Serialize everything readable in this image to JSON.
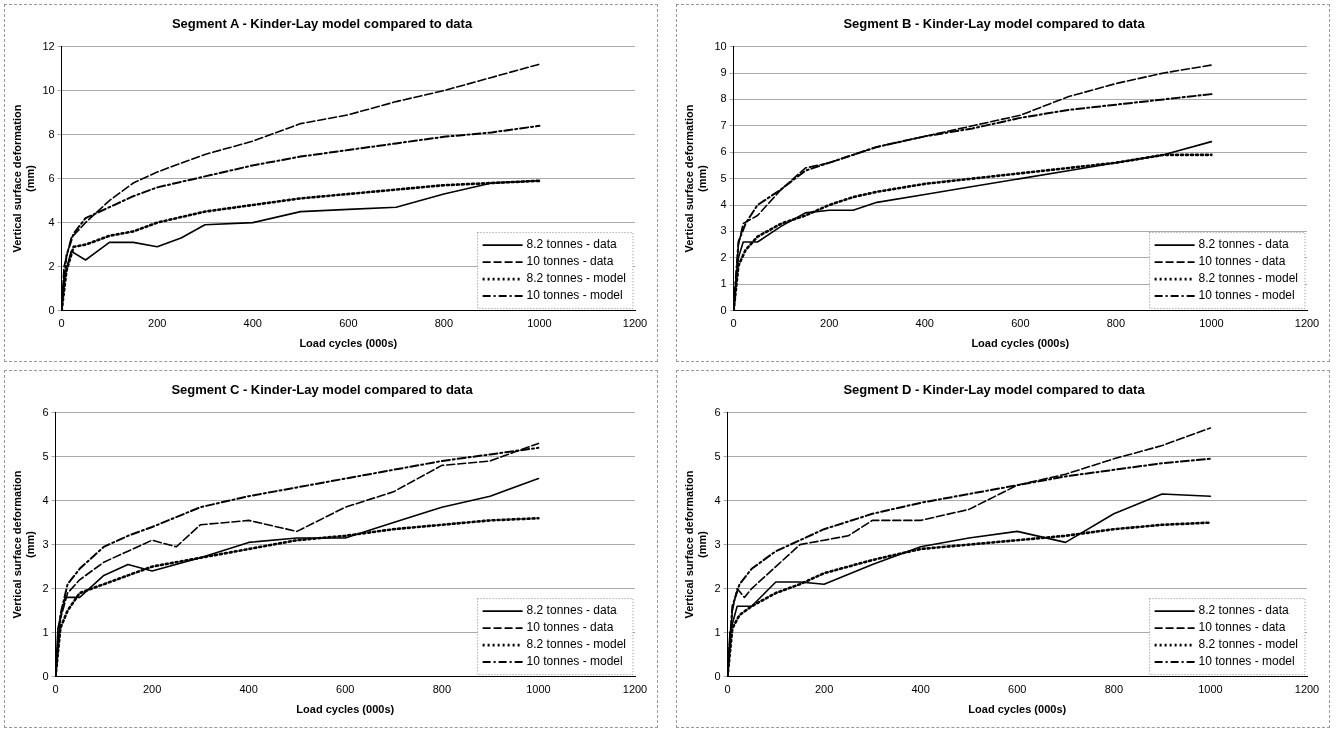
{
  "chart_data": [
    {
      "type": "line",
      "title": "Segment A - Kinder-Lay model compared to data",
      "xlabel": "Load cycles (000s)",
      "ylabel": "Vertical surface deformation (mm)",
      "xlim": [
        0,
        1200
      ],
      "xticks": [
        0,
        200,
        400,
        600,
        800,
        1000,
        1200
      ],
      "ylim": [
        0,
        12
      ],
      "yticks": [
        0,
        2,
        4,
        6,
        8,
        10,
        12
      ],
      "grid": "y",
      "legend": "bottom right",
      "marker": "none",
      "series": [
        {
          "name": "8.2 tonnes - data",
          "color": "#000000",
          "line_style": "solid",
          "x": [
            0,
            5,
            20,
            50,
            100,
            150,
            200,
            250,
            300,
            400,
            500,
            600,
            700,
            800,
            900,
            1000
          ],
          "values": [
            0,
            1.5,
            2.7,
            2.3,
            3.1,
            3.1,
            2.9,
            3.3,
            3.9,
            4.0,
            4.5,
            4.6,
            4.7,
            5.3,
            5.8,
            5.9
          ]
        },
        {
          "name": "10 tonnes - data",
          "color": "#000000",
          "line_style": "dashed",
          "x": [
            0,
            5,
            20,
            50,
            100,
            150,
            200,
            300,
            400,
            500,
            600,
            700,
            800,
            900,
            1000
          ],
          "values": [
            0,
            2.0,
            3.3,
            4.0,
            5.0,
            5.8,
            6.3,
            7.1,
            7.7,
            8.5,
            8.9,
            9.5,
            10.0,
            10.6,
            11.2
          ]
        },
        {
          "name": "8.2 tonnes - model",
          "color": "#000000",
          "line_style": "dotted",
          "x": [
            0,
            10,
            25,
            50,
            100,
            150,
            200,
            300,
            400,
            500,
            600,
            700,
            800,
            900,
            1000
          ],
          "values": [
            0,
            1.8,
            2.9,
            3.0,
            3.4,
            3.6,
            4.0,
            4.5,
            4.8,
            5.1,
            5.3,
            5.5,
            5.7,
            5.8,
            5.9
          ]
        },
        {
          "name": "10 tonnes - model",
          "color": "#000000",
          "line_style": "dashdot",
          "x": [
            0,
            10,
            25,
            50,
            100,
            150,
            200,
            300,
            400,
            500,
            600,
            700,
            800,
            900,
            1000
          ],
          "values": [
            0,
            2.5,
            3.5,
            4.2,
            4.7,
            5.2,
            5.6,
            6.1,
            6.6,
            7.0,
            7.3,
            7.6,
            7.9,
            8.1,
            8.4
          ]
        }
      ]
    },
    {
      "type": "line",
      "title": "Segment B - Kinder-Lay model compared to data",
      "xlabel": "Load cycles (000s)",
      "ylabel": "Vertical surface deformation (mm)",
      "xlim": [
        0,
        1200
      ],
      "xticks": [
        0,
        200,
        400,
        600,
        800,
        1000,
        1200
      ],
      "ylim": [
        0,
        10
      ],
      "yticks": [
        0,
        1,
        2,
        3,
        4,
        5,
        6,
        7,
        8,
        9,
        10
      ],
      "grid": "y",
      "legend": "bottom right",
      "marker": "none",
      "series": [
        {
          "name": "8.2 tonnes - data",
          "color": "#000000",
          "line_style": "solid",
          "x": [
            0,
            10,
            20,
            50,
            100,
            150,
            200,
            250,
            300,
            400,
            500,
            600,
            700,
            800,
            900,
            1000
          ],
          "values": [
            0,
            2.0,
            2.6,
            2.6,
            3.2,
            3.7,
            3.8,
            3.8,
            4.1,
            4.4,
            4.7,
            5.0,
            5.3,
            5.6,
            5.9,
            6.4
          ]
        },
        {
          "name": "10 tonnes - data",
          "color": "#000000",
          "line_style": "dashed",
          "x": [
            0,
            10,
            20,
            50,
            100,
            150,
            200,
            300,
            400,
            500,
            600,
            700,
            800,
            900,
            1000
          ],
          "values": [
            0,
            2.5,
            3.3,
            3.6,
            4.6,
            5.4,
            5.6,
            6.2,
            6.6,
            7.0,
            7.4,
            8.1,
            8.6,
            9.0,
            9.3
          ]
        },
        {
          "name": "8.2 tonnes - model",
          "color": "#000000",
          "line_style": "dotted",
          "x": [
            0,
            10,
            25,
            50,
            100,
            150,
            200,
            250,
            300,
            400,
            500,
            600,
            700,
            800,
            900,
            1000
          ],
          "values": [
            0,
            1.7,
            2.3,
            2.8,
            3.3,
            3.6,
            4.0,
            4.3,
            4.5,
            4.8,
            5.0,
            5.2,
            5.4,
            5.6,
            5.9,
            5.9
          ]
        },
        {
          "name": "10 tonnes - model",
          "color": "#000000",
          "line_style": "dashdot",
          "x": [
            0,
            10,
            25,
            50,
            100,
            150,
            200,
            250,
            300,
            400,
            500,
            600,
            700,
            800,
            900,
            1000
          ],
          "values": [
            0,
            2.6,
            3.3,
            4.0,
            4.6,
            5.3,
            5.6,
            5.9,
            6.2,
            6.6,
            6.9,
            7.3,
            7.6,
            7.8,
            8.0,
            8.2
          ]
        }
      ]
    },
    {
      "type": "line",
      "title": "Segment C - Kinder-Lay model compared to data",
      "xlabel": "Load cycles (000s)",
      "ylabel": "Vertical surface deformation (mm)",
      "xlim": [
        0,
        1200
      ],
      "xticks": [
        0,
        200,
        400,
        600,
        800,
        1000,
        1200
      ],
      "ylim": [
        0,
        6
      ],
      "yticks": [
        0,
        1,
        2,
        3,
        4,
        5,
        6
      ],
      "grid": "y",
      "legend": "bottom right",
      "marker": "none",
      "series": [
        {
          "name": "8.2 tonnes - data",
          "color": "#000000",
          "line_style": "solid",
          "x": [
            0,
            5,
            20,
            50,
            100,
            150,
            200,
            300,
            400,
            500,
            600,
            700,
            800,
            900,
            1000
          ],
          "values": [
            0,
            1.1,
            1.8,
            1.8,
            2.3,
            2.55,
            2.4,
            2.7,
            3.05,
            3.15,
            3.15,
            3.5,
            3.85,
            4.1,
            4.5
          ]
        },
        {
          "name": "10 tonnes - data",
          "color": "#000000",
          "line_style": "dashed",
          "x": [
            0,
            10,
            25,
            50,
            100,
            150,
            200,
            250,
            300,
            400,
            500,
            600,
            700,
            800,
            900,
            1000
          ],
          "values": [
            0,
            1.3,
            1.9,
            2.2,
            2.6,
            2.85,
            3.1,
            2.95,
            3.45,
            3.55,
            3.3,
            3.85,
            4.2,
            4.8,
            4.9,
            5.3
          ]
        },
        {
          "name": "8.2 tonnes - model",
          "color": "#000000",
          "line_style": "dotted",
          "x": [
            0,
            10,
            25,
            50,
            100,
            150,
            200,
            300,
            400,
            500,
            600,
            700,
            800,
            900,
            1000
          ],
          "values": [
            0,
            1.1,
            1.5,
            1.9,
            2.1,
            2.3,
            2.5,
            2.7,
            2.9,
            3.1,
            3.2,
            3.35,
            3.45,
            3.55,
            3.6
          ]
        },
        {
          "name": "10 tonnes - model",
          "color": "#000000",
          "line_style": "dashdot",
          "x": [
            0,
            10,
            25,
            50,
            100,
            150,
            200,
            300,
            400,
            500,
            600,
            700,
            800,
            900,
            1000
          ],
          "values": [
            0,
            1.4,
            2.1,
            2.45,
            2.95,
            3.2,
            3.4,
            3.85,
            4.1,
            4.3,
            4.5,
            4.7,
            4.9,
            5.05,
            5.2
          ]
        }
      ]
    },
    {
      "type": "line",
      "title": "Segment D - Kinder-Lay model compared to data",
      "xlabel": "Load cycles (000s)",
      "ylabel": "Vertical surface deformation (mm)",
      "xlim": [
        0,
        1200
      ],
      "xticks": [
        0,
        200,
        400,
        600,
        800,
        1000,
        1200
      ],
      "ylim": [
        0,
        6
      ],
      "yticks": [
        0,
        1,
        2,
        3,
        4,
        5,
        6
      ],
      "grid": "y",
      "legend": "bottom right",
      "marker": "none",
      "series": [
        {
          "name": "8.2 tonnes - data",
          "color": "#000000",
          "line_style": "solid",
          "x": [
            0,
            5,
            20,
            50,
            100,
            150,
            200,
            300,
            400,
            500,
            600,
            700,
            800,
            900,
            1000
          ],
          "values": [
            0,
            1.0,
            1.6,
            1.6,
            2.15,
            2.15,
            2.1,
            2.55,
            2.95,
            3.15,
            3.3,
            3.05,
            3.7,
            4.15,
            4.1
          ]
        },
        {
          "name": "10 tonnes - data",
          "color": "#000000",
          "line_style": "dashed",
          "x": [
            0,
            10,
            20,
            35,
            50,
            100,
            150,
            200,
            250,
            300,
            400,
            500,
            600,
            700,
            800,
            900,
            1000
          ],
          "values": [
            0,
            1.5,
            2.0,
            1.8,
            2.0,
            2.5,
            3.0,
            3.1,
            3.2,
            3.55,
            3.55,
            3.8,
            4.35,
            4.6,
            4.95,
            5.25,
            5.65
          ]
        },
        {
          "name": "8.2 tonnes - model",
          "color": "#000000",
          "line_style": "dotted",
          "x": [
            0,
            10,
            25,
            50,
            100,
            150,
            200,
            300,
            400,
            500,
            600,
            700,
            800,
            900,
            1000
          ],
          "values": [
            0,
            1.1,
            1.4,
            1.6,
            1.9,
            2.1,
            2.35,
            2.65,
            2.9,
            3.0,
            3.1,
            3.2,
            3.35,
            3.45,
            3.5
          ]
        },
        {
          "name": "10 tonnes - model",
          "color": "#000000",
          "line_style": "dashdot",
          "x": [
            0,
            10,
            25,
            50,
            100,
            150,
            200,
            300,
            400,
            500,
            600,
            700,
            800,
            900,
            1000
          ],
          "values": [
            0,
            1.6,
            2.1,
            2.45,
            2.85,
            3.1,
            3.35,
            3.7,
            3.95,
            4.15,
            4.35,
            4.55,
            4.7,
            4.85,
            4.95
          ]
        }
      ]
    }
  ]
}
